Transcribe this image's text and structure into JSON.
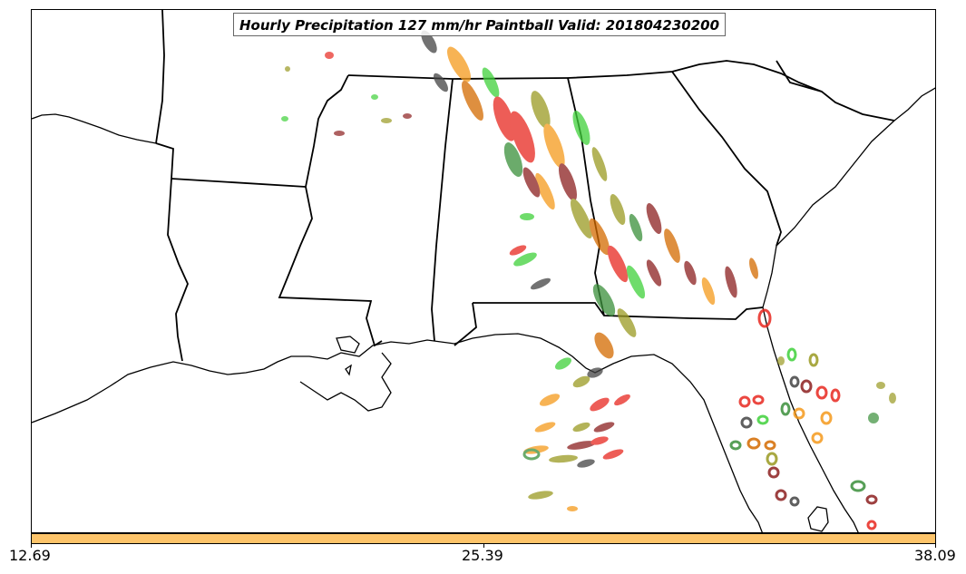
{
  "title": "Hourly Precipitation 127 mm/hr Paintball Valid: 201804230200",
  "colorbar": {
    "color": "#fdc46a",
    "min_label": "12.69",
    "mid_label": "25.39",
    "max_label": "38.09"
  },
  "palette": {
    "coastline": "#000000",
    "borders": "#000000",
    "member_colors": [
      "#e8281f",
      "#f59a1c",
      "#3fd13a",
      "#3a8f3a",
      "#9a9a22",
      "#8c1f1f",
      "#444444",
      "#d46a00"
    ]
  },
  "map": {
    "region": "southeastern-us",
    "features": [
      "coastline",
      "state-borders"
    ]
  }
}
